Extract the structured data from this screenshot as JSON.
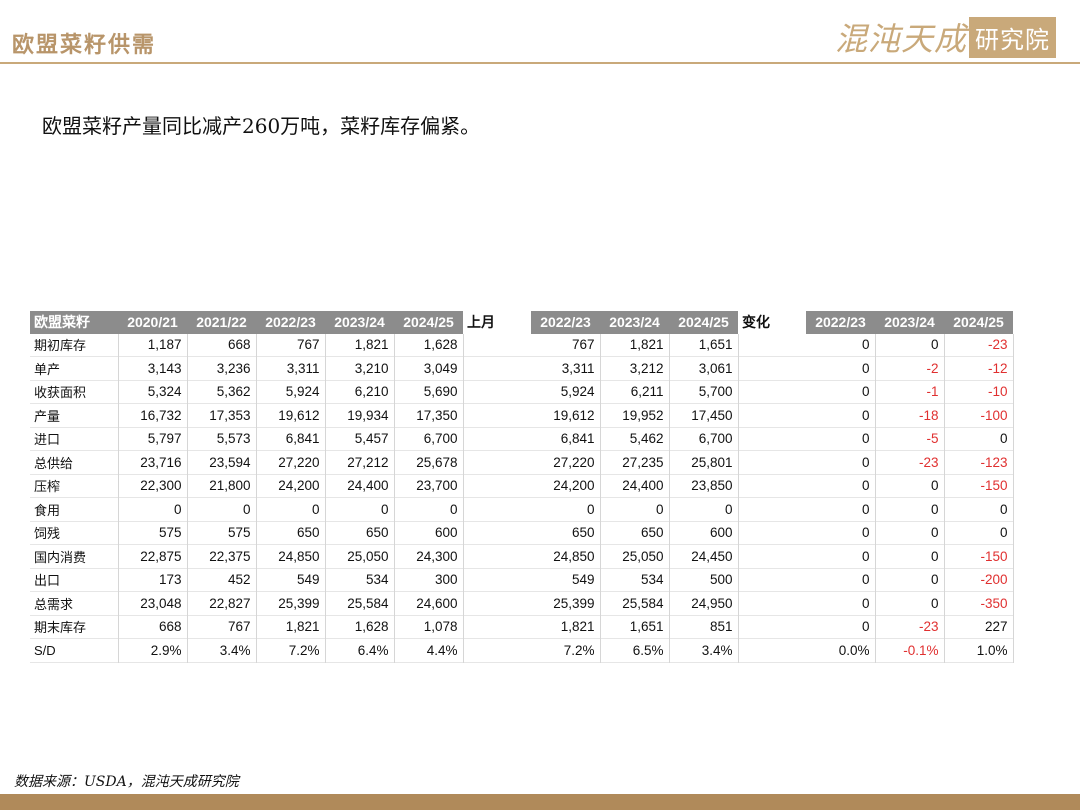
{
  "header": {
    "title": "欧盟菜籽供需",
    "logo_script": "混沌天成",
    "logo_box": "研究院"
  },
  "subtitle": "欧盟菜籽产量同比减产260万吨，菜籽库存偏紧。",
  "source": "数据来源：USDA，混沌天成研究院",
  "colors": {
    "accent_gold": "#c9a97a",
    "header_gray": "#8c8c8c",
    "negative_red": "#e03030"
  },
  "table": {
    "corner_label": "欧盟菜籽",
    "group2_label": "上月",
    "group3_label": "变化",
    "years_main": [
      "2020/21",
      "2021/22",
      "2022/23",
      "2023/24",
      "2024/25"
    ],
    "years_prev": [
      "2022/23",
      "2023/24",
      "2024/25"
    ],
    "years_change": [
      "2022/23",
      "2023/24",
      "2024/25"
    ],
    "rows": [
      {
        "label": "期初库存",
        "main": [
          "1,187",
          "668",
          "767",
          "1,821",
          "1,628"
        ],
        "prev": [
          "767",
          "1,821",
          "1,651"
        ],
        "change": [
          "0",
          "0",
          "-23"
        ]
      },
      {
        "label": "单产",
        "main": [
          "3,143",
          "3,236",
          "3,311",
          "3,210",
          "3,049"
        ],
        "prev": [
          "3,311",
          "3,212",
          "3,061"
        ],
        "change": [
          "0",
          "-2",
          "-12"
        ]
      },
      {
        "label": "收获面积",
        "main": [
          "5,324",
          "5,362",
          "5,924",
          "6,210",
          "5,690"
        ],
        "prev": [
          "5,924",
          "6,211",
          "5,700"
        ],
        "change": [
          "0",
          "-1",
          "-10"
        ]
      },
      {
        "label": "产量",
        "main": [
          "16,732",
          "17,353",
          "19,612",
          "19,934",
          "17,350"
        ],
        "prev": [
          "19,612",
          "19,952",
          "17,450"
        ],
        "change": [
          "0",
          "-18",
          "-100"
        ]
      },
      {
        "label": "进口",
        "main": [
          "5,797",
          "5,573",
          "6,841",
          "5,457",
          "6,700"
        ],
        "prev": [
          "6,841",
          "5,462",
          "6,700"
        ],
        "change": [
          "0",
          "-5",
          "0"
        ]
      },
      {
        "label": "总供给",
        "main": [
          "23,716",
          "23,594",
          "27,220",
          "27,212",
          "25,678"
        ],
        "prev": [
          "27,220",
          "27,235",
          "25,801"
        ],
        "change": [
          "0",
          "-23",
          "-123"
        ]
      },
      {
        "label": "压榨",
        "main": [
          "22,300",
          "21,800",
          "24,200",
          "24,400",
          "23,700"
        ],
        "prev": [
          "24,200",
          "24,400",
          "23,850"
        ],
        "change": [
          "0",
          "0",
          "-150"
        ]
      },
      {
        "label": "食用",
        "main": [
          "0",
          "0",
          "0",
          "0",
          "0"
        ],
        "prev": [
          "0",
          "0",
          "0"
        ],
        "change": [
          "0",
          "0",
          "0"
        ]
      },
      {
        "label": "饲残",
        "main": [
          "575",
          "575",
          "650",
          "650",
          "600"
        ],
        "prev": [
          "650",
          "650",
          "600"
        ],
        "change": [
          "0",
          "0",
          "0"
        ]
      },
      {
        "label": "国内消费",
        "main": [
          "22,875",
          "22,375",
          "24,850",
          "25,050",
          "24,300"
        ],
        "prev": [
          "24,850",
          "25,050",
          "24,450"
        ],
        "change": [
          "0",
          "0",
          "-150"
        ]
      },
      {
        "label": "出口",
        "main": [
          "173",
          "452",
          "549",
          "534",
          "300"
        ],
        "prev": [
          "549",
          "534",
          "500"
        ],
        "change": [
          "0",
          "0",
          "-200"
        ]
      },
      {
        "label": "总需求",
        "main": [
          "23,048",
          "22,827",
          "25,399",
          "25,584",
          "24,600"
        ],
        "prev": [
          "25,399",
          "25,584",
          "24,950"
        ],
        "change": [
          "0",
          "0",
          "-350"
        ]
      },
      {
        "label": "期末库存",
        "main": [
          "668",
          "767",
          "1,821",
          "1,628",
          "1,078"
        ],
        "prev": [
          "1,821",
          "1,651",
          "851"
        ],
        "change": [
          "0",
          "-23",
          "227"
        ]
      },
      {
        "label": "S/D",
        "main": [
          "2.9%",
          "3.4%",
          "7.2%",
          "6.4%",
          "4.4%"
        ],
        "prev": [
          "7.2%",
          "6.5%",
          "3.4%"
        ],
        "change": [
          "0.0%",
          "-0.1%",
          "1.0%"
        ]
      }
    ]
  }
}
